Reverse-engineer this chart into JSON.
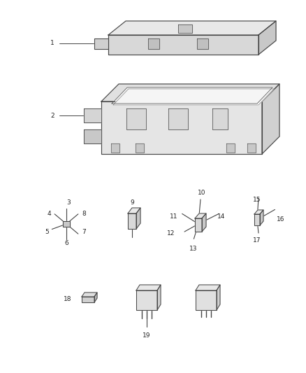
{
  "bg_color": "#ffffff",
  "fig_width": 4.38,
  "fig_height": 5.33,
  "dpi": 100,
  "lc": "#444444",
  "lc2": "#888888",
  "fs": 6.5
}
